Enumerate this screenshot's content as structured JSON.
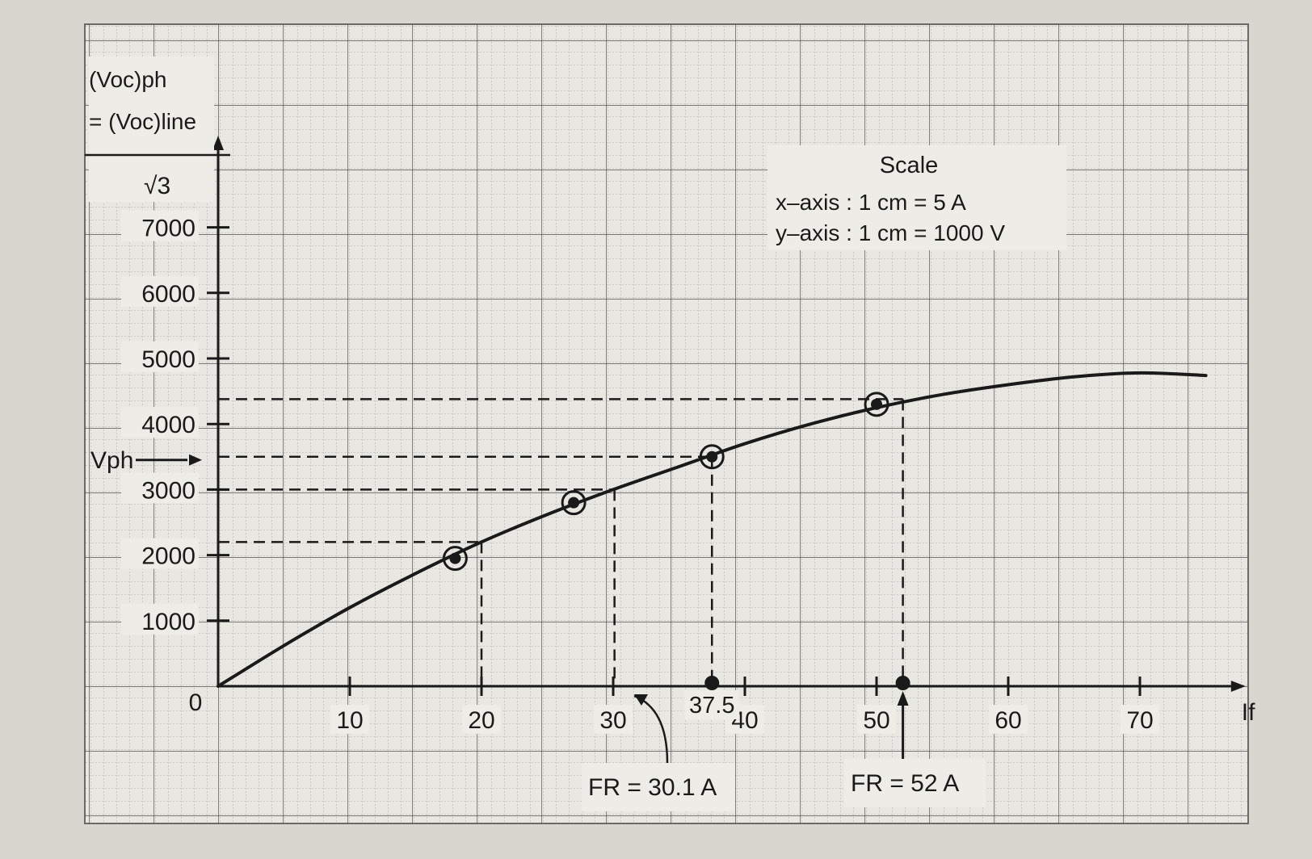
{
  "colors": {
    "page": "#d9d6cf",
    "paper": "#e9e7e1",
    "grid_fine": "#9c9b97",
    "grid_major": "#555452",
    "ink": "#1a1a1a",
    "label_bg": "#eeece6"
  },
  "chart_data": {
    "type": "line",
    "title": "",
    "xlabel": "If",
    "ylabel": "(Voc)ph = (Voc)line / √3",
    "xlim": [
      0,
      76
    ],
    "ylim": [
      0,
      7500
    ],
    "grid": true,
    "x_ticks": [
      10,
      20,
      30,
      40,
      50,
      60,
      70
    ],
    "y_ticks": [
      1000,
      2000,
      3000,
      4000,
      5000,
      6000,
      7000
    ],
    "origin_label": "0",
    "series": [
      {
        "style": "curve",
        "x": [
          0,
          5,
          10,
          15,
          20,
          25,
          30,
          35,
          40,
          45,
          50,
          55,
          60,
          65,
          70,
          75
        ],
        "y": [
          0,
          620,
          1200,
          1720,
          2200,
          2620,
          3000,
          3350,
          3700,
          4000,
          4250,
          4450,
          4600,
          4720,
          4780,
          4740
        ]
      },
      {
        "style": "circled-points",
        "x": [
          18,
          27,
          37.5,
          50
        ],
        "y": [
          1950,
          2800,
          3500,
          4300
        ]
      }
    ],
    "projections": [
      {
        "x": 20,
        "y": 2200
      },
      {
        "x": 30.1,
        "y": 3000
      },
      {
        "x": 37.5,
        "y": 3500
      },
      {
        "x": 52,
        "y": 4380
      }
    ],
    "x_markers": [
      37.5,
      52
    ],
    "annotations": {
      "y_label_line1": "(Voc)ph",
      "y_label_line2": "= (Voc)line",
      "y_label_denominator": "√3",
      "vph_label": "Vph",
      "vph_value": 3500,
      "marker_375_label": "37.5",
      "fr1_label": "FR = 30.1 A",
      "fr1_x": 30.1,
      "fr2_label": "FR = 52 A",
      "fr2_x": 52,
      "scale_title": "Scale",
      "scale_x": "x–axis  : 1 cm = 5 A",
      "scale_y": "y–axis  : 1 cm = 1000 V"
    }
  }
}
